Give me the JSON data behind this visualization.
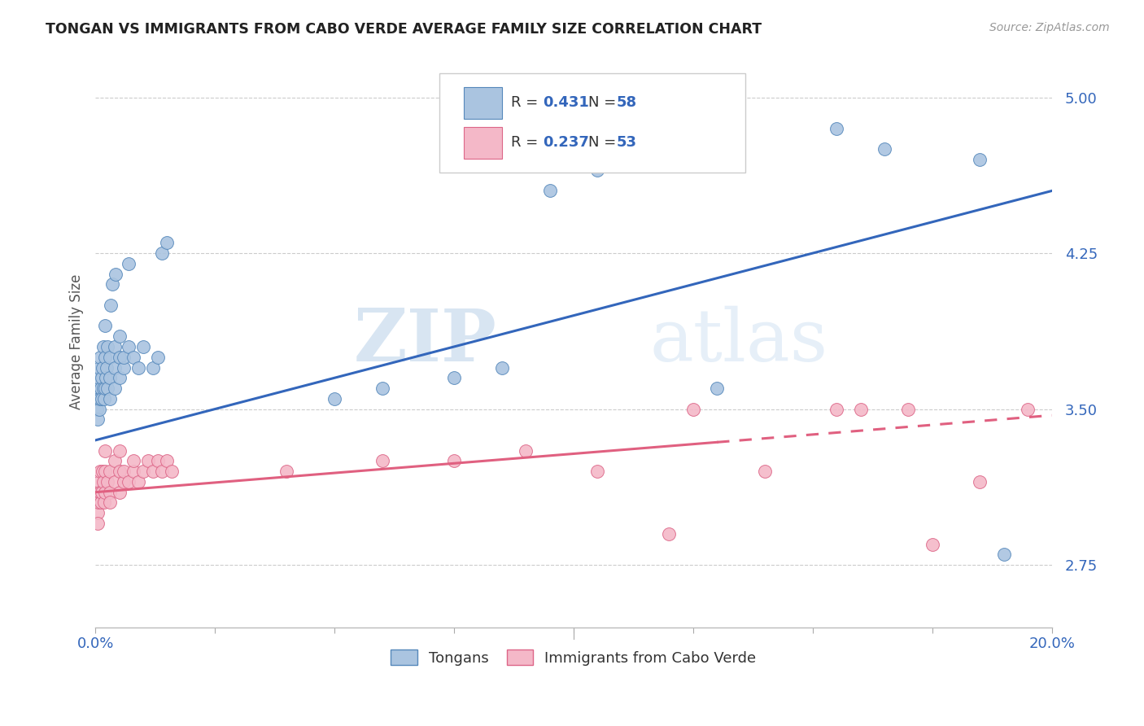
{
  "title": "TONGAN VS IMMIGRANTS FROM CABO VERDE AVERAGE FAMILY SIZE CORRELATION CHART",
  "source": "Source: ZipAtlas.com",
  "ylabel": "Average Family Size",
  "yticks": [
    2.75,
    3.5,
    4.25,
    5.0
  ],
  "xlim": [
    0.0,
    0.2
  ],
  "ylim": [
    2.45,
    5.2
  ],
  "blue_R": "0.431",
  "blue_N": "58",
  "pink_R": "0.237",
  "pink_N": "53",
  "blue_color": "#aac4e0",
  "pink_color": "#f4b8c8",
  "blue_edge_color": "#5588bb",
  "pink_edge_color": "#dd6688",
  "blue_line_color": "#3366bb",
  "pink_line_color": "#e06080",
  "right_tick_color": "#3366bb",
  "watermark_color": "#ccddf0",
  "watermark": "ZIPatlas",
  "blue_scatter_x": [
    0.0002,
    0.0003,
    0.0004,
    0.0005,
    0.0006,
    0.0007,
    0.0008,
    0.0009,
    0.001,
    0.001,
    0.0012,
    0.0013,
    0.0014,
    0.0015,
    0.0016,
    0.0017,
    0.0018,
    0.002,
    0.002,
    0.002,
    0.0022,
    0.0023,
    0.0025,
    0.0025,
    0.003,
    0.003,
    0.003,
    0.0032,
    0.0035,
    0.004,
    0.004,
    0.004,
    0.0042,
    0.005,
    0.005,
    0.005,
    0.006,
    0.006,
    0.007,
    0.007,
    0.008,
    0.009,
    0.01,
    0.012,
    0.013,
    0.014,
    0.015,
    0.05,
    0.06,
    0.075,
    0.085,
    0.095,
    0.105,
    0.13,
    0.155,
    0.165,
    0.185,
    0.19
  ],
  "blue_scatter_y": [
    3.55,
    3.5,
    3.45,
    3.6,
    3.55,
    3.65,
    3.5,
    3.7,
    3.55,
    3.75,
    3.6,
    3.65,
    3.55,
    3.7,
    3.6,
    3.8,
    3.55,
    3.6,
    3.75,
    3.9,
    3.65,
    3.7,
    3.6,
    3.8,
    3.55,
    3.65,
    3.75,
    4.0,
    4.1,
    3.6,
    3.7,
    3.8,
    4.15,
    3.65,
    3.75,
    3.85,
    3.7,
    3.75,
    3.8,
    4.2,
    3.75,
    3.7,
    3.8,
    3.7,
    3.75,
    4.25,
    4.3,
    3.55,
    3.6,
    3.65,
    3.7,
    4.55,
    4.65,
    3.6,
    4.85,
    4.75,
    4.7,
    2.8
  ],
  "pink_scatter_x": [
    0.0002,
    0.0003,
    0.0004,
    0.0005,
    0.0006,
    0.0007,
    0.0008,
    0.001,
    0.001,
    0.0012,
    0.0014,
    0.0015,
    0.0016,
    0.0018,
    0.002,
    0.002,
    0.002,
    0.0025,
    0.003,
    0.003,
    0.003,
    0.004,
    0.004,
    0.005,
    0.005,
    0.005,
    0.006,
    0.006,
    0.007,
    0.008,
    0.008,
    0.009,
    0.01,
    0.011,
    0.012,
    0.013,
    0.014,
    0.015,
    0.016,
    0.04,
    0.06,
    0.075,
    0.09,
    0.105,
    0.12,
    0.125,
    0.14,
    0.155,
    0.16,
    0.17,
    0.175,
    0.185,
    0.195
  ],
  "pink_scatter_y": [
    3.1,
    3.05,
    3.0,
    2.95,
    3.1,
    3.05,
    3.15,
    3.1,
    3.2,
    3.05,
    3.1,
    3.2,
    3.15,
    3.05,
    3.1,
    3.2,
    3.3,
    3.15,
    3.1,
    3.2,
    3.05,
    3.15,
    3.25,
    3.1,
    3.2,
    3.3,
    3.15,
    3.2,
    3.15,
    3.2,
    3.25,
    3.15,
    3.2,
    3.25,
    3.2,
    3.25,
    3.2,
    3.25,
    3.2,
    3.2,
    3.25,
    3.25,
    3.3,
    3.2,
    2.9,
    3.5,
    3.2,
    3.5,
    3.5,
    3.5,
    2.85,
    3.15,
    3.5
  ],
  "blue_trend_x": [
    0.0,
    0.2
  ],
  "blue_trend_y": [
    3.35,
    4.55
  ],
  "pink_trend_x": [
    0.0,
    0.2
  ],
  "pink_trend_y": [
    3.1,
    3.47
  ],
  "pink_trend_solid_end": 0.13,
  "xtick_positions": [
    0.0,
    0.025,
    0.05,
    0.075,
    0.1,
    0.125,
    0.15,
    0.175,
    0.2
  ],
  "xtick_major": [
    0.0,
    0.1,
    0.2
  ],
  "xtick_labels_show": {
    "0.0": "0.0%",
    "0.20": "20.0%"
  }
}
